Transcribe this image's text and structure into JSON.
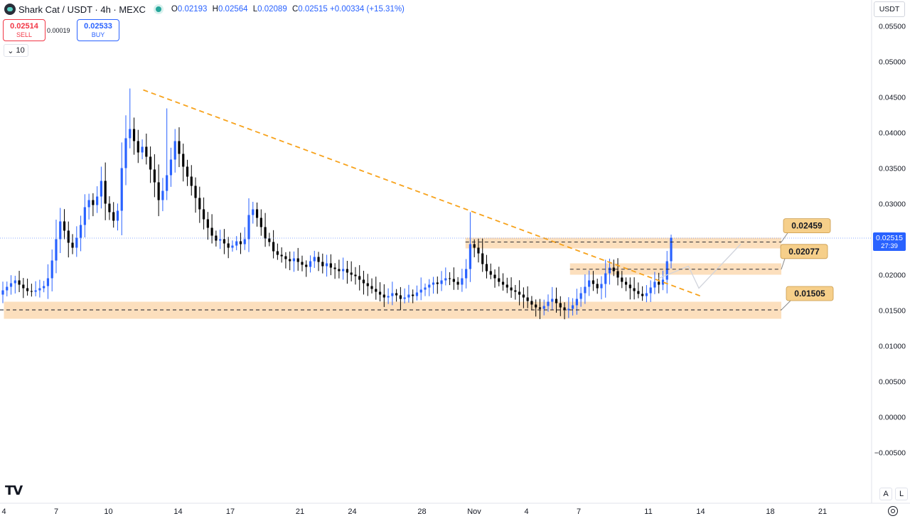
{
  "header": {
    "title": "Shark Cat / USDT · 4h · MEXC",
    "ohlc": [
      {
        "label": "O",
        "value": "0.02193"
      },
      {
        "label": "H",
        "value": "0.02564"
      },
      {
        "label": "L",
        "value": "0.02089"
      },
      {
        "label": "C",
        "value": "0.02515"
      }
    ],
    "change": "+0.00334 (+15.31%)"
  },
  "trade": {
    "sell_price": "0.02514",
    "sell_label": "SELL",
    "spread": "0.00019",
    "buy_price": "0.02533",
    "buy_label": "BUY",
    "quantity": "10"
  },
  "currency": "USDT",
  "bottom_buttons": {
    "auto": "A",
    "log": "L"
  },
  "icons": {
    "logo": "tradingview-logo-icon",
    "settings": "gear-icon",
    "symbol": "shark-cat-coin-icon"
  },
  "colors": {
    "up": "#2962ff",
    "down": "#000000",
    "trend": "#f7a21b",
    "zone": "#fcd9b2",
    "label_bg": "#f6cf8a",
    "price_line": "#2962ff"
  },
  "chart_data": {
    "type": "candlestick",
    "interval": "4h",
    "ylim": [
      -0.006,
      0.057
    ],
    "y_ticks": [
      "0.05500",
      "0.05000",
      "0.04500",
      "0.04000",
      "0.03500",
      "0.03000",
      "0.02500",
      "0.02000",
      "0.01500",
      "0.01000",
      "0.00500",
      "0.00000",
      "−0.00500"
    ],
    "y_tick_values": [
      0.055,
      0.05,
      0.045,
      0.04,
      0.035,
      0.03,
      0.025,
      0.02,
      0.015,
      0.01,
      0.005,
      0.0,
      -0.005
    ],
    "x_ticks": [
      {
        "label": "4",
        "day": -1
      },
      {
        "label": "7",
        "day": 2
      },
      {
        "label": "10",
        "day": 5
      },
      {
        "label": "14",
        "day": 9
      },
      {
        "label": "17",
        "day": 12
      },
      {
        "label": "21",
        "day": 16
      },
      {
        "label": "24",
        "day": 19
      },
      {
        "label": "28",
        "day": 23
      },
      {
        "label": "Nov",
        "day": 26
      },
      {
        "label": "4",
        "day": 29
      },
      {
        "label": "7",
        "day": 32
      },
      {
        "label": "11",
        "day": 36
      },
      {
        "label": "14",
        "day": 39
      },
      {
        "label": "18",
        "day": 43
      },
      {
        "label": "21",
        "day": 46
      }
    ],
    "last_price": "0.02515",
    "countdown": "27:39",
    "closes": [
      0.0178,
      0.0183,
      0.0188,
      0.0192,
      0.0186,
      0.0181,
      0.0177,
      0.0176,
      0.0178,
      0.0181,
      0.0184,
      0.0195,
      0.022,
      0.025,
      0.0275,
      0.0262,
      0.0245,
      0.0238,
      0.0252,
      0.027,
      0.0295,
      0.0305,
      0.0298,
      0.031,
      0.0332,
      0.03,
      0.0288,
      0.0276,
      0.029,
      0.035,
      0.0392,
      0.0405,
      0.0388,
      0.0372,
      0.038,
      0.0366,
      0.0348,
      0.033,
      0.0305,
      0.0318,
      0.034,
      0.0362,
      0.0388,
      0.037,
      0.0352,
      0.0338,
      0.0325,
      0.0308,
      0.0292,
      0.0278,
      0.0266,
      0.0255,
      0.0248,
      0.025,
      0.0244,
      0.0238,
      0.0241,
      0.0247,
      0.0243,
      0.025,
      0.0284,
      0.0292,
      0.028,
      0.0267,
      0.0251,
      0.0246,
      0.0233,
      0.0228,
      0.0226,
      0.0222,
      0.0219,
      0.0223,
      0.0218,
      0.0214,
      0.0211,
      0.0219,
      0.0225,
      0.0218,
      0.0212,
      0.0216,
      0.021,
      0.0208,
      0.0205,
      0.0208,
      0.0203,
      0.02,
      0.0198,
      0.0193,
      0.0188,
      0.0184,
      0.018,
      0.0176,
      0.0172,
      0.0168,
      0.017,
      0.0174,
      0.0171,
      0.0166,
      0.0168,
      0.0172,
      0.017,
      0.0175,
      0.0179,
      0.0182,
      0.0186,
      0.0189,
      0.0187,
      0.0192,
      0.0195,
      0.0194,
      0.019,
      0.0186,
      0.0195,
      0.0208,
      0.0243,
      0.0238,
      0.023,
      0.0215,
      0.0205,
      0.02,
      0.0195,
      0.019,
      0.0186,
      0.0182,
      0.0178,
      0.0176,
      0.0172,
      0.0168,
      0.0163,
      0.0158,
      0.0154,
      0.0152,
      0.0156,
      0.0162,
      0.0166,
      0.016,
      0.0154,
      0.015,
      0.0152,
      0.0157,
      0.0166,
      0.0174,
      0.0183,
      0.0192,
      0.0187,
      0.0181,
      0.0187,
      0.0202,
      0.021,
      0.0205,
      0.0196,
      0.019,
      0.0186,
      0.0181,
      0.0177,
      0.0173,
      0.017,
      0.0174,
      0.0182,
      0.019,
      0.0186,
      0.0193,
      0.0219,
      0.0252
    ],
    "trendline": {
      "from": [
        7.0,
        0.046
      ],
      "to": [
        39.0,
        0.017
      ]
    },
    "zones": [
      {
        "low": 0.0237,
        "high": 0.0252,
        "from_day": 25.5
      },
      {
        "low": 0.02,
        "high": 0.0216,
        "from_day": 31.5
      },
      {
        "low": 0.0138,
        "high": 0.0162,
        "from_day": -1.0
      }
    ],
    "levels": [
      {
        "value": 0.02459,
        "label": "0.02459"
      },
      {
        "value": 0.02077,
        "label": "0.02077"
      },
      {
        "value": 0.01505,
        "label": "0.01505"
      }
    ],
    "projection": [
      [
        36.6,
        0.0195
      ],
      [
        38.3,
        0.0212
      ],
      [
        38.9,
        0.0181
      ],
      [
        41.3,
        0.0243
      ]
    ]
  }
}
